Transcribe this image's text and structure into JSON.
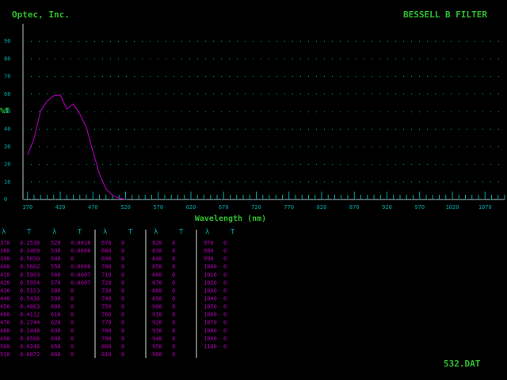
{
  "header": {
    "left": "Optec, Inc.",
    "right": "BESSELL B FILTER"
  },
  "chart_data": {
    "type": "line",
    "y_label": "%T",
    "x_label": "Wavelength (nm)",
    "x": [
      370,
      380,
      390,
      400,
      410,
      420,
      430,
      440,
      450,
      460,
      470,
      480,
      490,
      500,
      510,
      520
    ],
    "series": [
      {
        "name": "T",
        "color": "#a000a8",
        "values": [
          25.36,
          34.69,
          50.5,
          56.02,
          59.03,
          59.54,
          51.53,
          54.36,
          48.63,
          41.12,
          27.44,
          14.48,
          5.96,
          2.46,
          0.72,
          0.18
        ]
      }
    ],
    "xlim": [
      363,
      1100
    ],
    "ylim": [
      0,
      100
    ],
    "xticks": [
      370,
      420,
      470,
      520,
      570,
      620,
      670,
      720,
      770,
      820,
      870,
      920,
      970,
      1020,
      1070
    ],
    "yticks": [
      0,
      10,
      20,
      30,
      40,
      50,
      60,
      70,
      80,
      90
    ],
    "grid": true
  },
  "table": {
    "headers": [
      "λ",
      "T"
    ],
    "groups": [
      [
        [
          "370",
          "0.2536"
        ],
        [
          "380",
          "0.3469"
        ],
        [
          "390",
          "0.5050"
        ],
        [
          "400",
          "0.5602"
        ],
        [
          "410",
          "0.5903"
        ],
        [
          "420",
          "0.5954"
        ],
        [
          "430",
          "0.5153"
        ],
        [
          "440",
          "0.5436"
        ],
        [
          "450",
          "0.4863"
        ],
        [
          "460",
          "0.4112"
        ],
        [
          "470",
          "0.2744"
        ],
        [
          "480",
          "0.1448"
        ],
        [
          "490",
          "0.0596"
        ],
        [
          "500",
          "0.0246"
        ],
        [
          "510",
          "0.0072"
        ]
      ],
      [
        [
          "520",
          "0.0018"
        ],
        [
          "530",
          "0.0008"
        ],
        [
          "540",
          "0"
        ],
        [
          "550",
          "0.0008"
        ],
        [
          "560",
          "0.0007"
        ],
        [
          "570",
          "0.0007"
        ],
        [
          "580",
          "0"
        ],
        [
          "590",
          "0"
        ],
        [
          "600",
          "0"
        ],
        [
          "610",
          "0"
        ],
        [
          "620",
          "0"
        ],
        [
          "630",
          "0"
        ],
        [
          "640",
          "0"
        ],
        [
          "650",
          "0"
        ],
        [
          "660",
          "0"
        ]
      ],
      [
        [
          "670",
          "0"
        ],
        [
          "680",
          "0"
        ],
        [
          "690",
          "0"
        ],
        [
          "700",
          "0"
        ],
        [
          "710",
          "0"
        ],
        [
          "720",
          "0"
        ],
        [
          "730",
          "0"
        ],
        [
          "740",
          "0"
        ],
        [
          "750",
          "0"
        ],
        [
          "760",
          "0"
        ],
        [
          "770",
          "0"
        ],
        [
          "780",
          "0"
        ],
        [
          "790",
          "0"
        ],
        [
          "800",
          "0"
        ],
        [
          "810",
          "0"
        ]
      ],
      [
        [
          "820",
          "0"
        ],
        [
          "830",
          "0"
        ],
        [
          "840",
          "0"
        ],
        [
          "850",
          "0"
        ],
        [
          "860",
          "0"
        ],
        [
          "870",
          "0"
        ],
        [
          "880",
          "0"
        ],
        [
          "890",
          "0"
        ],
        [
          "900",
          "0"
        ],
        [
          "910",
          "0"
        ],
        [
          "920",
          "0"
        ],
        [
          "930",
          "0"
        ],
        [
          "940",
          "0"
        ],
        [
          "950",
          "0"
        ],
        [
          "960",
          "0"
        ]
      ],
      [
        [
          "970",
          "0"
        ],
        [
          "980",
          "0"
        ],
        [
          "990",
          "0"
        ],
        [
          "1000",
          "0"
        ],
        [
          "1010",
          "0"
        ],
        [
          "1020",
          "0"
        ],
        [
          "1030",
          "0"
        ],
        [
          "1040",
          "0"
        ],
        [
          "1050",
          "0"
        ],
        [
          "1060",
          "0"
        ],
        [
          "1070",
          "0"
        ],
        [
          "1080",
          "0"
        ],
        [
          "1090",
          "0"
        ],
        [
          "1100",
          "0"
        ]
      ]
    ]
  },
  "footer": "532.DAT"
}
